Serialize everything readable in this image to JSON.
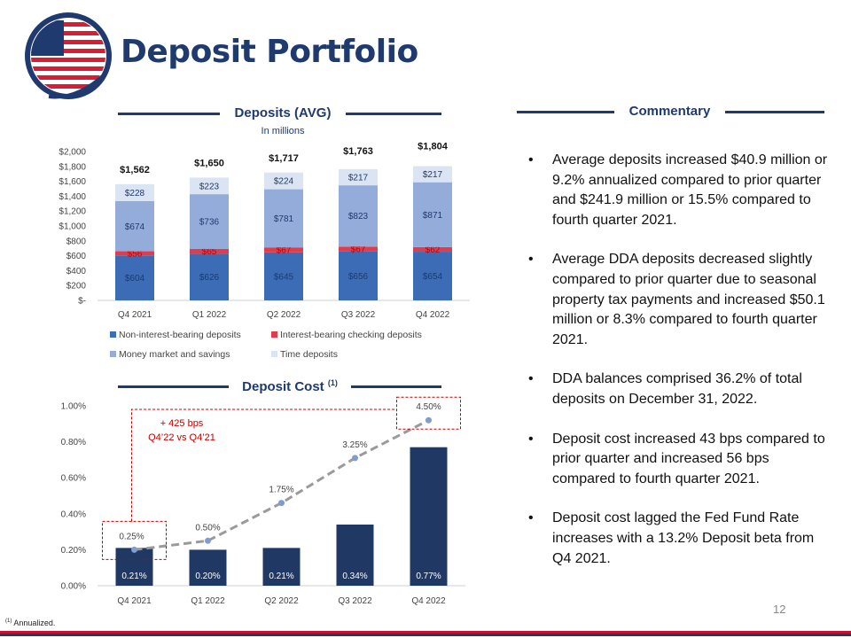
{
  "page": {
    "title": "Deposit Portfolio",
    "page_number": "12",
    "footnote_marker": "(1)",
    "footnote": "Annualized."
  },
  "commentary": {
    "heading": "Commentary",
    "bullets": [
      "Average deposits increased $40.9 million or 9.2% annualized compared to prior quarter and $241.9 million or 15.5% compared to fourth quarter 2021.",
      "Average DDA deposits decreased slightly compared to prior quarter due to seasonal property tax payments and increased $50.1 million or 8.3% compared to fourth quarter 2021.",
      "DDA balances comprised 36.2% of total deposits on December 31, 2022.",
      "Deposit cost increased 43 bps compared to prior quarter and increased 56 bps compared to fourth quarter 2021.",
      "Deposit cost lagged the Fed Fund Rate increases with a 13.2% Deposit beta from Q4 2021."
    ]
  },
  "colors": {
    "navy": "#1f3a6e",
    "nib": "#3b6cb5",
    "ibc": "#e03c4e",
    "mms": "#93acd9",
    "td": "#dae4f2",
    "cost_bar": "#1f3864",
    "fed_line": "#9a9a9a",
    "fed_marker": "#7f9dd0",
    "annot_red": "#c00000"
  },
  "chart_data": [
    {
      "type": "bar",
      "stacked": true,
      "title": "Deposits (AVG)",
      "subtitle": "In millions",
      "categories": [
        "Q4 2021",
        "Q1 2022",
        "Q2 2022",
        "Q3 2022",
        "Q4 2022"
      ],
      "series": [
        {
          "name": "Non-interest-bearing deposits",
          "values": [
            604,
            626,
            645,
            656,
            654
          ],
          "labels": [
            "$604",
            "$626",
            "$645",
            "$656",
            "$654"
          ]
        },
        {
          "name": "Interest-bearing checking deposits",
          "values": [
            56,
            65,
            67,
            67,
            62
          ],
          "labels": [
            "$56",
            "$65",
            "$67",
            "$67",
            "$62"
          ]
        },
        {
          "name": "Money market and savings",
          "values": [
            674,
            736,
            781,
            823,
            871
          ],
          "labels": [
            "$674",
            "$736",
            "$781",
            "$823",
            "$871"
          ]
        },
        {
          "name": "Time deposits",
          "values": [
            228,
            223,
            224,
            217,
            217
          ],
          "labels": [
            "$228",
            "$223",
            "$224",
            "$217",
            "$217"
          ]
        }
      ],
      "totals": [
        1562,
        1650,
        1717,
        1763,
        1804
      ],
      "total_labels": [
        "$1,562",
        "$1,650",
        "$1,717",
        "$1,763",
        "$1,804"
      ],
      "ylim": [
        0,
        2000
      ],
      "yticks": [
        0,
        200,
        400,
        600,
        800,
        1000,
        1200,
        1400,
        1600,
        1800,
        2000
      ],
      "ytick_labels": [
        "$-",
        "$200",
        "$400",
        "$600",
        "$800",
        "$1,000",
        "$1,200",
        "$1,400",
        "$1,600",
        "$1,800",
        "$2,000"
      ],
      "legend": "bottom"
    },
    {
      "type": "bar",
      "title": "Deposit Cost",
      "title_sup": "(1)",
      "categories": [
        "Q4 2021",
        "Q1 2022",
        "Q2 2022",
        "Q3 2022",
        "Q4 2022"
      ],
      "series": [
        {
          "name": "Deposit cost",
          "type": "bar",
          "values": [
            0.21,
            0.2,
            0.21,
            0.34,
            0.77
          ],
          "labels": [
            "0.21%",
            "0.20%",
            "0.21%",
            "0.34%",
            "0.77%"
          ]
        },
        {
          "name": "Fed Fund Rate",
          "type": "line",
          "values": [
            0.2,
            0.25,
            0.46,
            0.71,
            0.92
          ],
          "labels": [
            "0.25%",
            "0.50%",
            "1.75%",
            "3.25%",
            "4.50%"
          ]
        }
      ],
      "ylim": [
        0,
        1.0
      ],
      "yticks": [
        0,
        0.2,
        0.4,
        0.6,
        0.8,
        1.0
      ],
      "ytick_labels": [
        "0.00%",
        "0.20%",
        "0.40%",
        "0.60%",
        "0.80%",
        "1.00%"
      ],
      "annotation": {
        "line1": "+ 425 bps",
        "line2": "Q4’22 vs Q4’21"
      }
    }
  ]
}
